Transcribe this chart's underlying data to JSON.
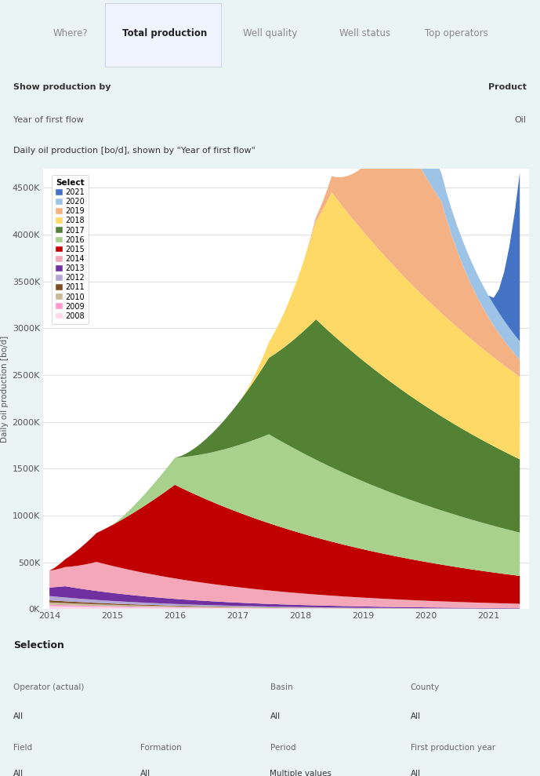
{
  "title_nav": [
    "Where?",
    "Total production",
    "Well quality",
    "Well status",
    "Top operators"
  ],
  "title_nav_bold": "Total production",
  "show_production_by_label": "Show production by",
  "show_production_by_value": "Year of first flow",
  "product_label": "Product",
  "product_value": "Oil",
  "chart_title": "Daily oil production [bo/d], shown by \"Year of first flow\"",
  "ylabel": "Daily oil production [bo/d]",
  "yticks": [
    0,
    500000,
    1000000,
    1500000,
    2000000,
    2500000,
    3000000,
    3500000,
    4000000,
    4500000
  ],
  "ytick_labels": [
    "0K",
    "500K",
    "1000K",
    "1500K",
    "2000K",
    "2500K",
    "3000K",
    "3500K",
    "4000K",
    "4500K"
  ],
  "ylim": [
    0,
    4700000
  ],
  "xlim_start": 2013.9,
  "xlim_end": 2021.65,
  "xticks": [
    2014,
    2015,
    2016,
    2017,
    2018,
    2019,
    2020,
    2021
  ],
  "legend_title": "Select",
  "legend_labels": [
    "2021",
    "2020",
    "2019",
    "2018",
    "2017",
    "2016",
    "2015",
    "2014",
    "2013",
    "2012",
    "2011",
    "2010",
    "2009",
    "2008"
  ],
  "colors": {
    "2021": "#4472c4",
    "2020": "#9dc3e6",
    "2019": "#f4b183",
    "2018": "#ffd966",
    "2017": "#548235",
    "2016": "#a9d18e",
    "2015": "#c00000",
    "2014": "#f4a7b9",
    "2013": "#7030a0",
    "2012": "#b4a7d6",
    "2011": "#7f4f24",
    "2010": "#c9b99a",
    "2009": "#ff99cc",
    "2008": "#ffd7e8"
  },
  "bg_color": "#eaf4f4",
  "chart_bg": "#ffffff",
  "selection_label": "Selection",
  "sel_items": [
    [
      "Operator (actual)",
      "All",
      "Basin",
      "All",
      "County",
      "All"
    ],
    [
      "Field",
      "All",
      "Formation",
      "All",
      "Period",
      "Multiple values",
      "First production year",
      "All"
    ]
  ],
  "years_order": [
    "2008",
    "2009",
    "2010",
    "2011",
    "2012",
    "2013",
    "2014",
    "2015",
    "2016",
    "2017",
    "2018",
    "2019",
    "2020",
    "2021"
  ]
}
